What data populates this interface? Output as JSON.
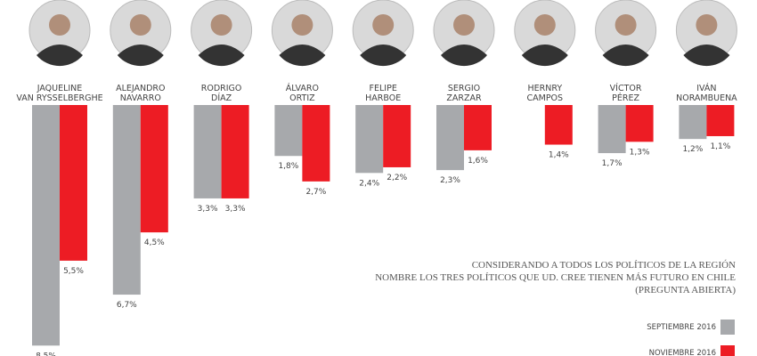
{
  "chart_data": {
    "type": "bar",
    "categories": [
      [
        "JAQUELINE",
        "VAN RYSSELBERGHE"
      ],
      [
        "ALEJANDRO",
        "NAVARRO"
      ],
      [
        "RODRIGO",
        "DÍAZ"
      ],
      [
        "ÁLVARO",
        "ORTIZ"
      ],
      [
        "FELIPE",
        "HARBOE"
      ],
      [
        "SERGIO",
        "ZARZAR"
      ],
      [
        "HERNRY",
        "CAMPOS"
      ],
      [
        "VÍCTOR",
        "PÉREZ"
      ],
      [
        "IVÁN",
        "NORAMBUENA"
      ]
    ],
    "series": [
      {
        "name": "SEPTIEMBRE 2016",
        "color": "#a7a9ac",
        "values": [
          8.5,
          6.7,
          3.3,
          1.8,
          2.4,
          2.3,
          null,
          1.7,
          1.2
        ],
        "labels": [
          "8,5%",
          "6,7%",
          "3,3%",
          "1,8%",
          "2,4%",
          "2,3%",
          null,
          "1,7%",
          "1,2%"
        ]
      },
      {
        "name": "NOVIEMBRE 2016",
        "color": "#ed1c24",
        "values": [
          5.5,
          4.5,
          3.3,
          2.7,
          2.2,
          1.6,
          1.4,
          1.3,
          1.1
        ],
        "labels": [
          "5,5%",
          "4,5%",
          "3,3%",
          "2,7%",
          "2,2%",
          "1,6%",
          "1,4%",
          "1,3%",
          "1,1%"
        ]
      }
    ],
    "bar_direction": "downward",
    "title": [
      "CONSIDERANDO A TODOS LOS POLÍTICOS DE LA REGIÓN",
      "NOMBRE LOS TRES POLÍTICOS QUE UD. CREE TIENEN MÁS FUTURO EN CHILE",
      "(PREGUNTA ABIERTA)"
    ],
    "legend_position": "bottom-right",
    "grid": false,
    "photos": "circular-portrait-per-category"
  }
}
